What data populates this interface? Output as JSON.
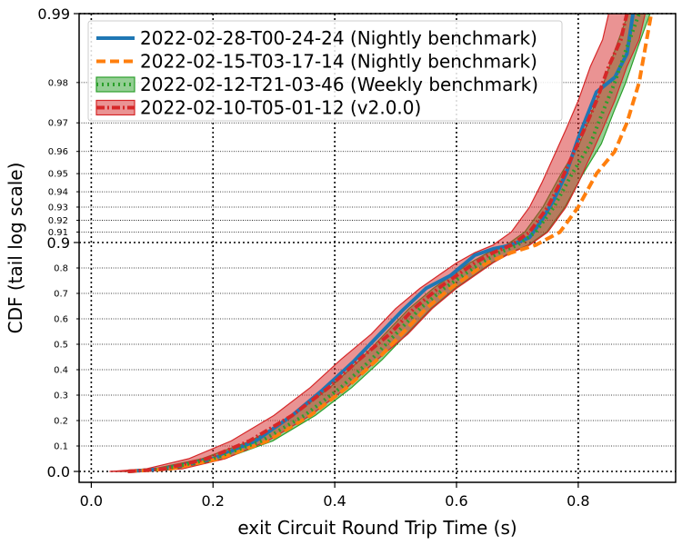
{
  "chart_data": {
    "type": "line",
    "title": "",
    "xlabel": "exit Circuit Round Trip Time (s)",
    "ylabel": "CDF (tail log scale)",
    "xlim": [
      -0.02,
      0.96
    ],
    "y_scale": "tail-log",
    "x_ticks": [
      "0.0",
      "0.2",
      "0.4",
      "0.6",
      "0.8"
    ],
    "x_tick_values": [
      0.0,
      0.2,
      0.4,
      0.6,
      0.8
    ],
    "y_major_ticks": [
      {
        "value": 0.0,
        "label": "0.0"
      },
      {
        "value": 0.9,
        "label": "0.9"
      },
      {
        "value": 0.99,
        "label": "0.99"
      }
    ],
    "y_minor_ticks": [
      {
        "value": 0.1,
        "label": "0.1"
      },
      {
        "value": 0.2,
        "label": "0.2"
      },
      {
        "value": 0.3,
        "label": "0.3"
      },
      {
        "value": 0.4,
        "label": "0.4"
      },
      {
        "value": 0.5,
        "label": "0.5"
      },
      {
        "value": 0.6,
        "label": "0.6"
      },
      {
        "value": 0.7,
        "label": "0.7"
      },
      {
        "value": 0.8,
        "label": "0.8"
      },
      {
        "value": 0.91,
        "label": "0.91"
      },
      {
        "value": 0.92,
        "label": "0.92"
      },
      {
        "value": 0.93,
        "label": "0.93"
      },
      {
        "value": 0.94,
        "label": "0.94"
      },
      {
        "value": 0.95,
        "label": "0.95"
      },
      {
        "value": 0.96,
        "label": "0.96"
      },
      {
        "value": 0.97,
        "label": "0.97"
      },
      {
        "value": 0.98,
        "label": "0.98"
      }
    ],
    "grid": true,
    "legend_position": "top-left",
    "series": [
      {
        "name": "2022-02-28-T00-24-24 (Nightly benchmark)",
        "color": "#1f77b4",
        "style": "solid",
        "x": [
          0.06,
          0.12,
          0.2,
          0.27,
          0.33,
          0.38,
          0.43,
          0.47,
          0.51,
          0.55,
          0.59,
          0.61,
          0.63,
          0.66,
          0.69,
          0.72,
          0.74,
          0.76,
          0.78,
          0.8,
          0.83,
          0.86,
          0.88,
          0.89
        ],
        "y": [
          0.0,
          0.01,
          0.05,
          0.12,
          0.22,
          0.32,
          0.43,
          0.53,
          0.63,
          0.72,
          0.77,
          0.81,
          0.85,
          0.875,
          0.89,
          0.905,
          0.92,
          0.935,
          0.95,
          0.965,
          0.978,
          0.981,
          0.985,
          0.99
        ]
      },
      {
        "name": "2022-02-15-T03-17-14 (Nightly benchmark)",
        "color": "#ff7f0e",
        "style": "dashed",
        "x": [
          0.06,
          0.13,
          0.21,
          0.29,
          0.36,
          0.42,
          0.47,
          0.51,
          0.55,
          0.59,
          0.62,
          0.65,
          0.69,
          0.73,
          0.77,
          0.8,
          0.83,
          0.86,
          0.88,
          0.9,
          0.92
        ],
        "y": [
          0.0,
          0.01,
          0.05,
          0.12,
          0.22,
          0.33,
          0.44,
          0.54,
          0.64,
          0.72,
          0.77,
          0.82,
          0.86,
          0.89,
          0.91,
          0.93,
          0.95,
          0.96,
          0.97,
          0.98,
          0.99
        ]
      },
      {
        "name": "2022-02-12-T21-03-46 (Weekly benchmark)",
        "color": "#2ca02c",
        "style": "dotted",
        "band": true,
        "x": [
          0.06,
          0.12,
          0.2,
          0.28,
          0.35,
          0.41,
          0.46,
          0.5,
          0.54,
          0.58,
          0.61,
          0.64,
          0.67,
          0.7,
          0.73,
          0.76,
          0.79,
          0.82,
          0.84,
          0.86,
          0.88,
          0.9
        ],
        "y": [
          0.0,
          0.01,
          0.05,
          0.12,
          0.22,
          0.33,
          0.44,
          0.54,
          0.64,
          0.72,
          0.77,
          0.82,
          0.86,
          0.89,
          0.91,
          0.93,
          0.95,
          0.963,
          0.973,
          0.98,
          0.986,
          0.99
        ],
        "band_width": 0.018
      },
      {
        "name": "2022-02-10-T05-01-12 (v2.0.0)",
        "color": "#d62728",
        "style": "dashdot",
        "band": true,
        "x": [
          0.06,
          0.12,
          0.19,
          0.26,
          0.33,
          0.39,
          0.44,
          0.49,
          0.53,
          0.57,
          0.6,
          0.63,
          0.66,
          0.69,
          0.72,
          0.75,
          0.77,
          0.79,
          0.81,
          0.83,
          0.85,
          0.87,
          0.88
        ],
        "y": [
          0.0,
          0.01,
          0.05,
          0.12,
          0.22,
          0.33,
          0.44,
          0.54,
          0.64,
          0.72,
          0.77,
          0.82,
          0.86,
          0.89,
          0.91,
          0.93,
          0.945,
          0.958,
          0.968,
          0.976,
          0.983,
          0.987,
          0.99
        ],
        "band_width": 0.03
      }
    ]
  }
}
